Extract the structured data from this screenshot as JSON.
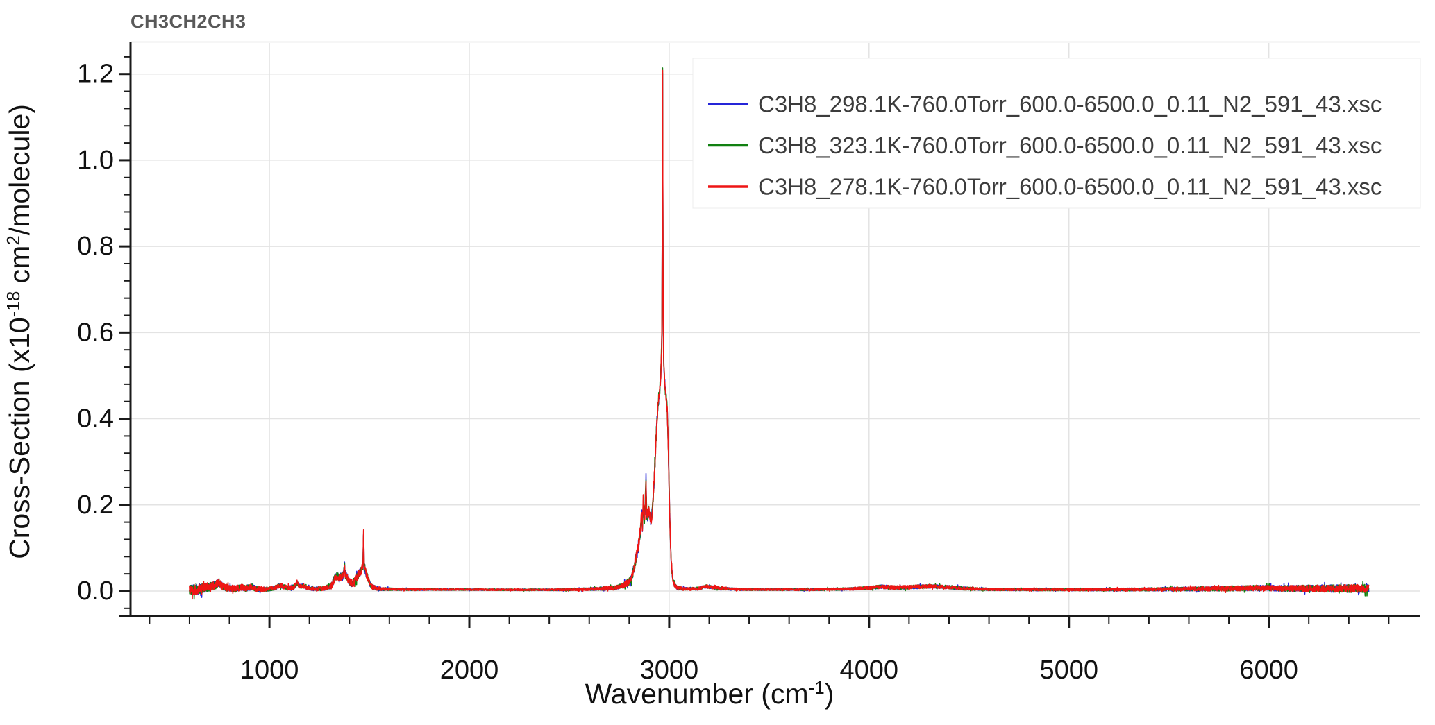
{
  "chart_data": {
    "type": "line",
    "title": "CH3CH2CH3",
    "xlabel": "Wavenumber (cm-1)",
    "xlabel_segments": [
      {
        "t": "Wavenumber (cm"
      },
      {
        "t": "-1",
        "sup": true
      },
      {
        "t": ")"
      }
    ],
    "ylabel": "Cross-Section (x10-18 cm2/molecule)",
    "ylabel_segments": [
      {
        "t": "Cross-Section (x10"
      },
      {
        "t": "-18",
        "sup": true
      },
      {
        "t": " cm"
      },
      {
        "t": "2",
        "sup": true
      },
      {
        "t": "/molecule)"
      }
    ],
    "xlim": [
      305,
      6755
    ],
    "ylim": [
      -0.058,
      1.272
    ],
    "x_ticks": [
      1000,
      2000,
      3000,
      4000,
      5000,
      6000
    ],
    "x_tick_labels": [
      "1000",
      "2000",
      "3000",
      "4000",
      "5000",
      "6000"
    ],
    "x_minor_step": 200,
    "x_minor_range": [
      400,
      6600
    ],
    "y_ticks": {
      "values": [
        0.0,
        0.2,
        0.4,
        0.6,
        0.8,
        1.0,
        1.2
      ],
      "labels": [
        "0.0",
        "0.2",
        "0.4",
        "0.6",
        "0.8",
        "1.0",
        "1.2"
      ]
    },
    "y_minor_step": 0.04,
    "grid": true,
    "legend_position": "top-right",
    "data_range_cm1": [
      600,
      6500
    ],
    "sample_step_cm1": 1,
    "colors": {
      "grid": "#e3e3e3",
      "spine": "#1a1a1a",
      "top_border": "#d9d9d9",
      "tick_label": "#111111",
      "axis_label": "#111111",
      "title": "#595959",
      "legend_text": "#3c3c3c",
      "legend_border": "#ececec"
    },
    "series": [
      {
        "name": "C3H8_298.1K-760.0Torr_600.0-6500.0_0.11_N2_591_43.xsc",
        "color": "#2525d8",
        "seed": 7
      },
      {
        "name": "C3H8_323.1K-760.0Torr_600.0-6500.0_0.11_N2_591_43.xsc",
        "color": "#118011",
        "seed": 13
      },
      {
        "name": "C3H8_278.1K-760.0Torr_600.0-6500.0_0.11_N2_591_43.xsc",
        "color": "#ee1515",
        "seed": 29
      }
    ],
    "envelope": [
      [
        600,
        0.002
      ],
      [
        630,
        0.003
      ],
      [
        660,
        0.006
      ],
      [
        700,
        0.01
      ],
      [
        730,
        0.014
      ],
      [
        748,
        0.02
      ],
      [
        762,
        0.012
      ],
      [
        790,
        0.007
      ],
      [
        830,
        0.005
      ],
      [
        862,
        0.009
      ],
      [
        880,
        0.006
      ],
      [
        912,
        0.01
      ],
      [
        932,
        0.005
      ],
      [
        980,
        0.004
      ],
      [
        1020,
        0.006
      ],
      [
        1052,
        0.013
      ],
      [
        1070,
        0.011
      ],
      [
        1090,
        0.007
      ],
      [
        1120,
        0.009
      ],
      [
        1140,
        0.018
      ],
      [
        1155,
        0.01
      ],
      [
        1170,
        0.013
      ],
      [
        1185,
        0.008
      ],
      [
        1220,
        0.005
      ],
      [
        1270,
        0.006
      ],
      [
        1310,
        0.012
      ],
      [
        1322,
        0.025
      ],
      [
        1330,
        0.032
      ],
      [
        1340,
        0.036
      ],
      [
        1348,
        0.028
      ],
      [
        1356,
        0.034
      ],
      [
        1364,
        0.03
      ],
      [
        1371,
        0.04
      ],
      [
        1376,
        0.062
      ],
      [
        1380,
        0.036
      ],
      [
        1388,
        0.034
      ],
      [
        1396,
        0.024
      ],
      [
        1405,
        0.02
      ],
      [
        1415,
        0.018
      ],
      [
        1425,
        0.022
      ],
      [
        1435,
        0.03
      ],
      [
        1445,
        0.038
      ],
      [
        1455,
        0.045
      ],
      [
        1463,
        0.052
      ],
      [
        1468,
        0.06
      ],
      [
        1471,
        0.137
      ],
      [
        1474,
        0.058
      ],
      [
        1480,
        0.048
      ],
      [
        1488,
        0.035
      ],
      [
        1496,
        0.025
      ],
      [
        1506,
        0.014
      ],
      [
        1515,
        0.01
      ],
      [
        1530,
        0.007
      ],
      [
        1560,
        0.005
      ],
      [
        1620,
        0.004
      ],
      [
        1700,
        0.0035
      ],
      [
        1800,
        0.0035
      ],
      [
        1900,
        0.0035
      ],
      [
        2000,
        0.0035
      ],
      [
        2150,
        0.003
      ],
      [
        2300,
        0.003
      ],
      [
        2450,
        0.003
      ],
      [
        2600,
        0.0045
      ],
      [
        2680,
        0.006
      ],
      [
        2730,
        0.008
      ],
      [
        2770,
        0.013
      ],
      [
        2795,
        0.02
      ],
      [
        2812,
        0.03
      ],
      [
        2825,
        0.055
      ],
      [
        2838,
        0.085
      ],
      [
        2848,
        0.11
      ],
      [
        2856,
        0.14
      ],
      [
        2862,
        0.18
      ],
      [
        2866,
        0.15
      ],
      [
        2871,
        0.21
      ],
      [
        2876,
        0.16
      ],
      [
        2880,
        0.2
      ],
      [
        2884,
        0.26
      ],
      [
        2887,
        0.18
      ],
      [
        2892,
        0.175
      ],
      [
        2898,
        0.19
      ],
      [
        2903,
        0.18
      ],
      [
        2908,
        0.165
      ],
      [
        2913,
        0.175
      ],
      [
        2918,
        0.2
      ],
      [
        2924,
        0.25
      ],
      [
        2930,
        0.31
      ],
      [
        2936,
        0.37
      ],
      [
        2942,
        0.42
      ],
      [
        2948,
        0.45
      ],
      [
        2953,
        0.47
      ],
      [
        2958,
        0.5
      ],
      [
        2962,
        0.56
      ],
      [
        2964,
        0.65
      ],
      [
        2966,
        0.95
      ],
      [
        2967,
        1.21
      ],
      [
        2968,
        0.95
      ],
      [
        2970,
        0.62
      ],
      [
        2973,
        0.53
      ],
      [
        2977,
        0.49
      ],
      [
        2981,
        0.465
      ],
      [
        2986,
        0.445
      ],
      [
        2990,
        0.42
      ],
      [
        2994,
        0.36
      ],
      [
        2998,
        0.28
      ],
      [
        3002,
        0.19
      ],
      [
        3006,
        0.12
      ],
      [
        3010,
        0.07
      ],
      [
        3015,
        0.04
      ],
      [
        3020,
        0.022
      ],
      [
        3028,
        0.012
      ],
      [
        3040,
        0.008
      ],
      [
        3060,
        0.006
      ],
      [
        3100,
        0.005
      ],
      [
        3150,
        0.006
      ],
      [
        3185,
        0.011
      ],
      [
        3210,
        0.009
      ],
      [
        3260,
        0.006
      ],
      [
        3350,
        0.004
      ],
      [
        3500,
        0.0035
      ],
      [
        3700,
        0.0035
      ],
      [
        3900,
        0.005
      ],
      [
        4000,
        0.007
      ],
      [
        4060,
        0.01
      ],
      [
        4130,
        0.008
      ],
      [
        4200,
        0.009
      ],
      [
        4300,
        0.011
      ],
      [
        4400,
        0.009
      ],
      [
        4480,
        0.006
      ],
      [
        4600,
        0.004
      ],
      [
        4800,
        0.0035
      ],
      [
        5000,
        0.0035
      ],
      [
        5200,
        0.0035
      ],
      [
        5400,
        0.004
      ],
      [
        5600,
        0.005
      ],
      [
        5800,
        0.006
      ],
      [
        5950,
        0.007
      ],
      [
        6100,
        0.006
      ],
      [
        6300,
        0.006
      ],
      [
        6500,
        0.006
      ]
    ],
    "noise_envelope": [
      [
        600,
        0.013
      ],
      [
        650,
        0.012
      ],
      [
        700,
        0.01
      ],
      [
        800,
        0.008
      ],
      [
        900,
        0.007
      ],
      [
        1000,
        0.005
      ],
      [
        1100,
        0.006
      ],
      [
        1200,
        0.004
      ],
      [
        1280,
        0.005
      ],
      [
        1330,
        0.009
      ],
      [
        1400,
        0.008
      ],
      [
        1470,
        0.01
      ],
      [
        1510,
        0.006
      ],
      [
        1560,
        0.004
      ],
      [
        1650,
        0.0025
      ],
      [
        1800,
        0.002
      ],
      [
        2000,
        0.002
      ],
      [
        2200,
        0.002
      ],
      [
        2400,
        0.002
      ],
      [
        2600,
        0.0032
      ],
      [
        2750,
        0.005
      ],
      [
        2820,
        0.01
      ],
      [
        2860,
        0.016
      ],
      [
        2900,
        0.013
      ],
      [
        2940,
        0.013
      ],
      [
        2975,
        0.011
      ],
      [
        3000,
        0.009
      ],
      [
        3030,
        0.005
      ],
      [
        3080,
        0.003
      ],
      [
        3200,
        0.004
      ],
      [
        3300,
        0.0028
      ],
      [
        3500,
        0.0022
      ],
      [
        3700,
        0.0025
      ],
      [
        3900,
        0.003
      ],
      [
        4050,
        0.0045
      ],
      [
        4250,
        0.0045
      ],
      [
        4450,
        0.004
      ],
      [
        4600,
        0.003
      ],
      [
        4800,
        0.0028
      ],
      [
        5000,
        0.003
      ],
      [
        5200,
        0.0032
      ],
      [
        5400,
        0.0038
      ],
      [
        5600,
        0.0048
      ],
      [
        5800,
        0.006
      ],
      [
        6000,
        0.0065
      ],
      [
        6200,
        0.008
      ],
      [
        6400,
        0.009
      ],
      [
        6500,
        0.0095
      ]
    ]
  }
}
